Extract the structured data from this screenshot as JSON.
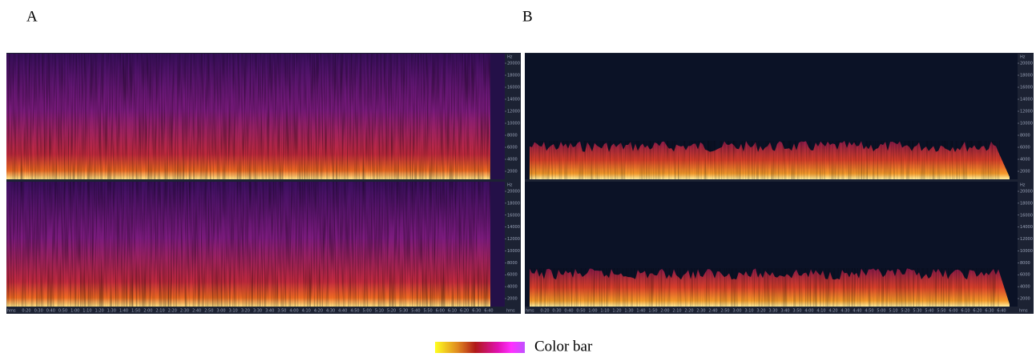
{
  "panels": [
    {
      "label": "A"
    },
    {
      "label": "B"
    }
  ],
  "axis": {
    "freq_unit": "Hz",
    "freq_ticks": [
      "20000",
      "18000",
      "16000",
      "14000",
      "12000",
      "10000",
      "8000",
      "6000",
      "4000",
      "2000"
    ],
    "time_unit": "hms",
    "time_ticks": [
      "0:20",
      "0:30",
      "0:40",
      "0:50",
      "1:00",
      "1:10",
      "1:20",
      "1:30",
      "1:40",
      "1:50",
      "2:00",
      "2:10",
      "2:20",
      "2:30",
      "2:40",
      "2:50",
      "3:00",
      "3:10",
      "3:20",
      "3:30",
      "3:40",
      "3:50",
      "4:00",
      "4:10",
      "4:20",
      "4:30",
      "4:40",
      "4:50",
      "5:00",
      "5:10",
      "5:20",
      "5:30",
      "5:40",
      "5:50",
      "6:00",
      "6:10",
      "6:20",
      "6:30",
      "6:40"
    ]
  },
  "colorbar": {
    "label": "Color bar"
  }
}
